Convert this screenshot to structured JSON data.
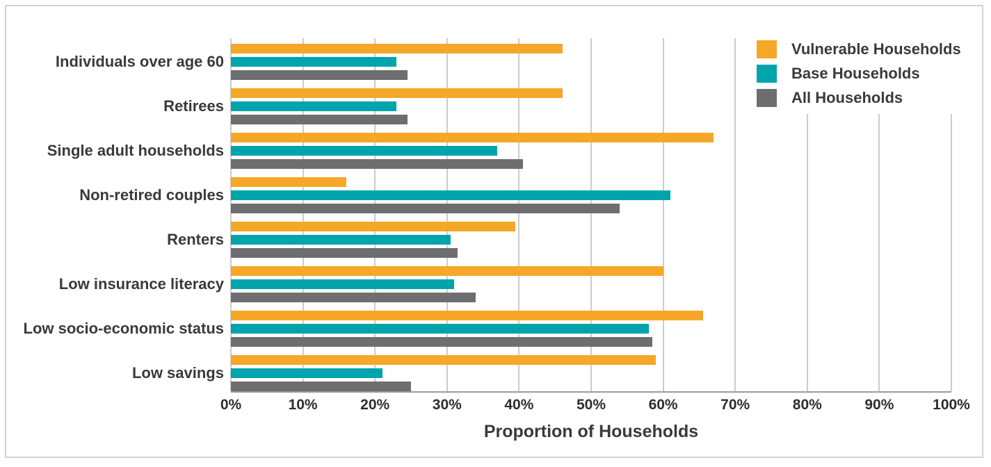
{
  "chart_data": {
    "type": "bar",
    "orientation": "horizontal",
    "title": "",
    "xlabel": "Proportion of Households",
    "ylabel": "",
    "xlim": [
      0,
      100
    ],
    "x_ticks": [
      "0%",
      "10%",
      "20%",
      "30%",
      "40%",
      "50%",
      "60%",
      "70%",
      "80%",
      "90%",
      "100%"
    ],
    "grid": "vertical",
    "legend_position": "top-right",
    "categories": [
      "Individuals over age 60",
      "Retirees",
      "Single adult households",
      "Non-retired couples",
      "Renters",
      "Low insurance literacy",
      "Low socio-economic status",
      "Low savings"
    ],
    "series": [
      {
        "name": "Vulnerable Households",
        "color": "#F5A727",
        "values": [
          46,
          46,
          67,
          16,
          39.5,
          60,
          65.5,
          59
        ]
      },
      {
        "name": "Base Households",
        "color": "#00A4AC",
        "values": [
          23,
          23,
          37,
          61,
          30.5,
          31,
          58,
          21
        ]
      },
      {
        "name": "All Households",
        "color": "#6E6E70",
        "values": [
          24.5,
          24.5,
          40.5,
          54,
          31.5,
          34,
          58.5,
          25
        ]
      }
    ]
  },
  "colors": {
    "gridline": "#cccccc",
    "axis_line": "#9b9b9b",
    "text": "#3a3a3a",
    "card_border": "#d3d3d3",
    "background": "#ffffff"
  }
}
